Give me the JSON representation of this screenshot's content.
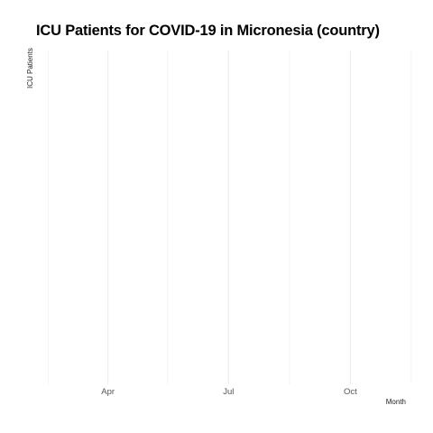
{
  "chart_data": {
    "type": "line",
    "title": "ICU Patients for COVID-19 in Micronesia (country)",
    "xlabel": "Month",
    "ylabel": "ICU Patients",
    "x_ticks": [
      {
        "date": "2021-02-15",
        "label": ""
      },
      {
        "date": "2021-04-01",
        "label": "Apr"
      },
      {
        "date": "2021-05-16",
        "label": ""
      },
      {
        "date": "2021-07-01",
        "label": "Jul"
      },
      {
        "date": "2021-08-16",
        "label": ""
      },
      {
        "date": "2021-10-01",
        "label": "Oct"
      },
      {
        "date": "2021-11-16",
        "label": ""
      }
    ],
    "xlim": [
      "2021-02-01",
      "2021-12-01"
    ],
    "series": [],
    "grid": true,
    "legend": "none"
  }
}
